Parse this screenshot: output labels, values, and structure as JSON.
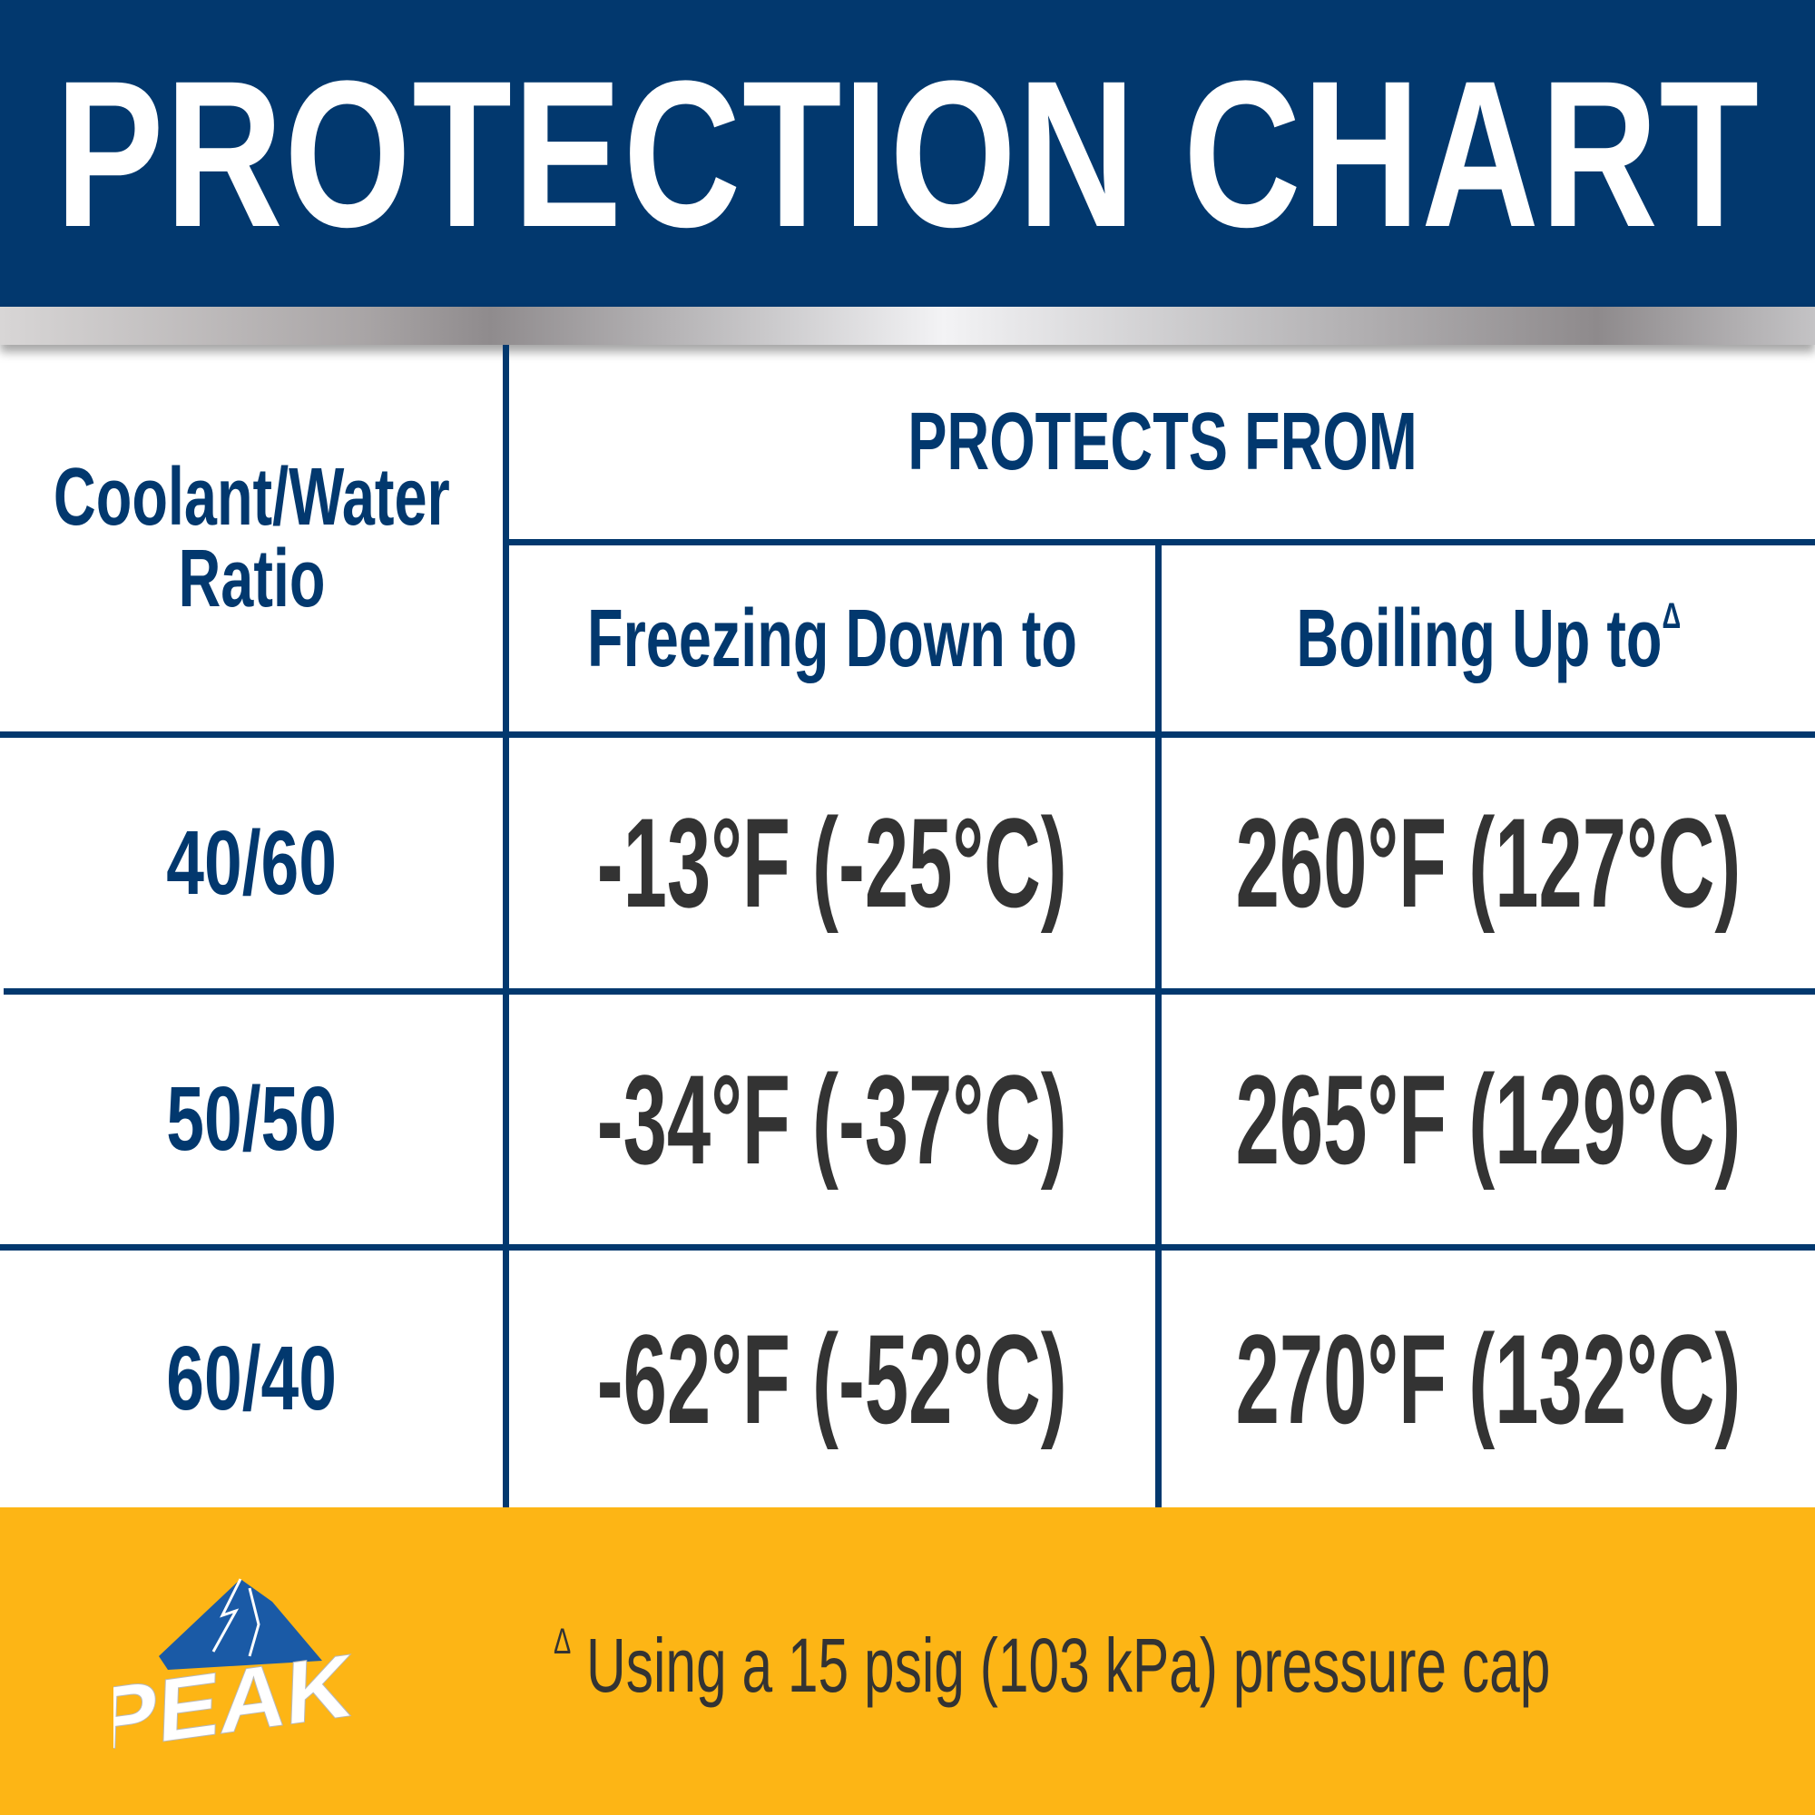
{
  "title": "PROTECTION CHART",
  "table": {
    "ratio_header": [
      "Coolant/Water",
      "Ratio"
    ],
    "group_header": "PROTECTS FROM",
    "freezing_header": "Freezing Down to",
    "boiling_header": "Boiling Up to",
    "boiling_marker": "Δ",
    "rows": [
      {
        "ratio": "40/60",
        "freezing": "-13°F (-25°C)",
        "boiling": "260°F (127°C)"
      },
      {
        "ratio": "50/50",
        "freezing": "-34°F (-37°C)",
        "boiling": "265°F (129°C)"
      },
      {
        "ratio": "60/40",
        "freezing": "-62°F (-52°C)",
        "boiling": "270°F (132°C)"
      }
    ]
  },
  "footer": {
    "note_marker": "Δ",
    "note": "Using a 15 psig (103 kPa) pressure cap",
    "logo_text": "PEAK"
  },
  "colors": {
    "navy": "#02386e",
    "yellow": "#fdb515",
    "value_text": "#333333"
  }
}
